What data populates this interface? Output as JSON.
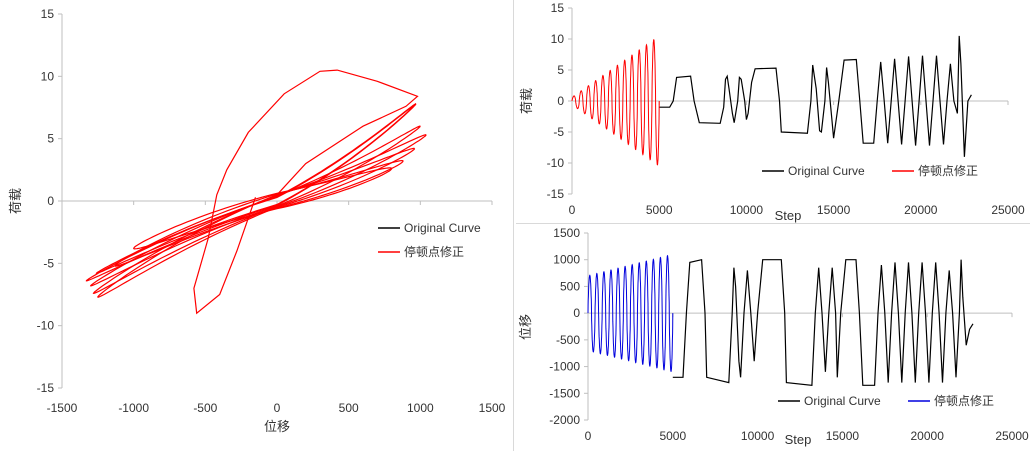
{
  "chart_data": [
    {
      "type": "line",
      "id": "hysteresis",
      "xlabel": "位移",
      "ylabel": "荷载",
      "xlim": [
        -1500,
        1500
      ],
      "ylim": [
        -15,
        15
      ],
      "xticks": [
        "-1500",
        "-1000",
        "-500",
        "0",
        "500",
        "1000",
        "1500"
      ],
      "yticks": [
        "15",
        "10",
        "5",
        "0",
        "-5",
        "-10",
        "-15"
      ],
      "legend": [
        "Original Curve",
        "停顿点修正"
      ],
      "series": [
        {
          "name": "停顿点修正",
          "color": "#ff0000",
          "cycles": [
            {
              "amp_x": [
                -1260,
                950
              ],
              "amp_y": [
                -5.8,
                7.6
              ]
            },
            {
              "amp_x": [
                -1330,
                970
              ],
              "amp_y": [
                -6.4,
                7.8
              ]
            },
            {
              "amp_x": [
                -1300,
                1000
              ],
              "amp_y": [
                -6.8,
                6.0
              ]
            },
            {
              "amp_x": [
                -1280,
                1040
              ],
              "amp_y": [
                -7.4,
                5.3
              ]
            },
            {
              "amp_x": [
                -1250,
                960
              ],
              "amp_y": [
                -7.7,
                4.2
              ]
            },
            {
              "amp_x": [
                -1130,
                880
              ],
              "amp_y": [
                -5.2,
                3.2
              ]
            },
            {
              "amp_x": [
                -1000,
                800
              ],
              "amp_y": [
                -3.8,
                2.6
              ]
            }
          ],
          "excursion": [
            [
              -150,
              0.3
            ],
            [
              -280,
              -4
            ],
            [
              -400,
              -7.5
            ],
            [
              -560,
              -9
            ],
            [
              -580,
              -7
            ],
            [
              -480,
              -3
            ],
            [
              -420,
              0.5
            ],
            [
              -350,
              2.5
            ],
            [
              -200,
              5.5
            ],
            [
              50,
              8.6
            ],
            [
              300,
              10.4
            ],
            [
              420,
              10.5
            ],
            [
              700,
              9.6
            ],
            [
              980,
              8.4
            ],
            [
              900,
              7.6
            ],
            [
              600,
              6
            ],
            [
              200,
              3
            ],
            [
              0,
              0.5
            ]
          ]
        }
      ]
    },
    {
      "type": "line",
      "id": "load-vs-step",
      "xlabel": "Step",
      "ylabel": "荷载",
      "xlim": [
        0,
        25000
      ],
      "ylim": [
        -15,
        15
      ],
      "xticks": [
        "0",
        "5000",
        "10000",
        "15000",
        "20000",
        "25000"
      ],
      "yticks": [
        "15",
        "10",
        "5",
        "0",
        "-5",
        "-10",
        "-15"
      ],
      "legend": [
        "Original Curve",
        "停顿点修正"
      ],
      "series": [
        {
          "name": "Original Curve",
          "color": "#000000",
          "points": [
            [
              5000,
              -1
            ],
            [
              5600,
              -1
            ],
            [
              5800,
              0
            ],
            [
              6000,
              3.8
            ],
            [
              6800,
              4
            ],
            [
              7000,
              0
            ],
            [
              7300,
              -3.5
            ],
            [
              8500,
              -3.6
            ],
            [
              8700,
              -1
            ],
            [
              8800,
              3.5
            ],
            [
              8900,
              4
            ],
            [
              9000,
              2
            ],
            [
              9200,
              -2
            ],
            [
              9300,
              -3.5
            ],
            [
              9500,
              0
            ],
            [
              9600,
              3.8
            ],
            [
              9700,
              3.5
            ],
            [
              9900,
              0
            ],
            [
              10000,
              -3
            ],
            [
              10100,
              -2
            ],
            [
              10300,
              3
            ],
            [
              10500,
              5.2
            ],
            [
              11700,
              5.3
            ],
            [
              11900,
              0
            ],
            [
              12000,
              -5
            ],
            [
              13500,
              -5.2
            ],
            [
              13700,
              0
            ],
            [
              13800,
              5.8
            ],
            [
              14000,
              2
            ],
            [
              14200,
              -4.8
            ],
            [
              14300,
              -5
            ],
            [
              14500,
              0
            ],
            [
              14600,
              5.4
            ],
            [
              14700,
              3
            ],
            [
              14900,
              -3
            ],
            [
              15000,
              -6
            ],
            [
              15300,
              0
            ],
            [
              15600,
              6.6
            ],
            [
              16300,
              6.7
            ],
            [
              16500,
              0
            ],
            [
              16700,
              -6.8
            ],
            [
              17300,
              -6.8
            ],
            [
              17500,
              0
            ],
            [
              17700,
              6.3
            ],
            [
              17900,
              0
            ],
            [
              18100,
              -6.8
            ],
            [
              18300,
              0
            ],
            [
              18500,
              6.8
            ],
            [
              18700,
              0
            ],
            [
              18900,
              -7
            ],
            [
              19100,
              0
            ],
            [
              19300,
              7.2
            ],
            [
              19500,
              0
            ],
            [
              19700,
              -7.2
            ],
            [
              19900,
              0
            ],
            [
              20100,
              7.3
            ],
            [
              20300,
              0
            ],
            [
              20500,
              -7.2
            ],
            [
              20700,
              0
            ],
            [
              20900,
              7.3
            ],
            [
              21100,
              0
            ],
            [
              21300,
              -7
            ],
            [
              21500,
              0
            ],
            [
              21700,
              6
            ],
            [
              21900,
              0
            ],
            [
              22100,
              -2
            ],
            [
              22200,
              10.5
            ],
            [
              22300,
              6
            ],
            [
              22500,
              -9
            ],
            [
              22700,
              0
            ],
            [
              22900,
              1
            ]
          ]
        },
        {
          "name": "停顿点修正",
          "color": "#ff0000",
          "osc": {
            "x0": 0,
            "x1": 5000,
            "cycles": 12,
            "amp0": 0.6,
            "amp1": 10.5
          }
        }
      ]
    },
    {
      "type": "line",
      "id": "disp-vs-step",
      "xlabel": "Step",
      "ylabel": "位移",
      "xlim": [
        0,
        25000
      ],
      "ylim": [
        -2000,
        1500
      ],
      "xticks": [
        "0",
        "5000",
        "10000",
        "15000",
        "20000",
        "25000"
      ],
      "yticks": [
        "1500",
        "1000",
        "500",
        "0",
        "-500",
        "-1000",
        "-1500",
        "-2000"
      ],
      "legend": [
        "Original Curve",
        "停顿点修正"
      ],
      "series": [
        {
          "name": "Original Curve",
          "color": "#000000",
          "points": [
            [
              5000,
              -1200
            ],
            [
              5600,
              -1200
            ],
            [
              5800,
              0
            ],
            [
              6000,
              950
            ],
            [
              6700,
              1000
            ],
            [
              6900,
              0
            ],
            [
              7000,
              -1200
            ],
            [
              8300,
              -1300
            ],
            [
              8500,
              0
            ],
            [
              8600,
              850
            ],
            [
              8700,
              500
            ],
            [
              8900,
              -900
            ],
            [
              9000,
              -1200
            ],
            [
              9200,
              0
            ],
            [
              9400,
              800
            ],
            [
              9600,
              0
            ],
            [
              9800,
              -900
            ],
            [
              10000,
              0
            ],
            [
              10300,
              1000
            ],
            [
              11400,
              1000
            ],
            [
              11600,
              0
            ],
            [
              11700,
              -1300
            ],
            [
              13200,
              -1350
            ],
            [
              13400,
              0
            ],
            [
              13600,
              850
            ],
            [
              13800,
              0
            ],
            [
              14000,
              -1100
            ],
            [
              14200,
              0
            ],
            [
              14400,
              850
            ],
            [
              14600,
              0
            ],
            [
              14700,
              -1200
            ],
            [
              14900,
              0
            ],
            [
              15200,
              1000
            ],
            [
              15800,
              1000
            ],
            [
              16000,
              0
            ],
            [
              16200,
              -1350
            ],
            [
              16900,
              -1350
            ],
            [
              17100,
              0
            ],
            [
              17300,
              900
            ],
            [
              17500,
              0
            ],
            [
              17700,
              -1300
            ],
            [
              17900,
              0
            ],
            [
              18100,
              950
            ],
            [
              18300,
              0
            ],
            [
              18500,
              -1300
            ],
            [
              18700,
              0
            ],
            [
              18900,
              950
            ],
            [
              19100,
              0
            ],
            [
              19300,
              -1300
            ],
            [
              19500,
              0
            ],
            [
              19700,
              950
            ],
            [
              19900,
              0
            ],
            [
              20100,
              -1300
            ],
            [
              20300,
              0
            ],
            [
              20500,
              950
            ],
            [
              20700,
              0
            ],
            [
              20900,
              -1300
            ],
            [
              21100,
              0
            ],
            [
              21300,
              800
            ],
            [
              21500,
              0
            ],
            [
              21700,
              -1200
            ],
            [
              21900,
              0
            ],
            [
              22000,
              1000
            ],
            [
              22100,
              300
            ],
            [
              22300,
              -600
            ],
            [
              22500,
              -300
            ],
            [
              22700,
              -200
            ]
          ]
        },
        {
          "name": "停顿点修正",
          "color": "#0000dd",
          "osc": {
            "x0": 0,
            "x1": 5000,
            "cycles": 12,
            "amp0": 700,
            "amp1": 1100
          }
        }
      ]
    }
  ]
}
